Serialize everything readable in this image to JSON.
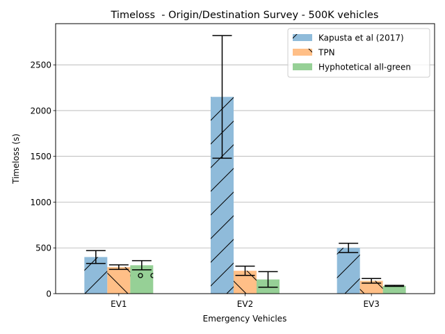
{
  "chart_data": {
    "type": "bar",
    "title": "Timeloss  - Origin/Destination Survey - 500K vehicles",
    "xlabel": "Emergency Vehicles",
    "ylabel": "Timeloss (s)",
    "categories": [
      "EV1",
      "EV2",
      "EV3"
    ],
    "ylim": [
      0,
      2950
    ],
    "yticks": [
      0,
      500,
      1000,
      1500,
      2000,
      2500
    ],
    "grid": "horizontal",
    "legend_position": "top-right",
    "series": [
      {
        "name": "Kapusta et al (2017)",
        "color": "#1f77b4",
        "hatch": "diagonal",
        "values": [
          400,
          2150,
          500
        ],
        "error": [
          70,
          670,
          50
        ]
      },
      {
        "name": "TPN",
        "color": "#ff7f0e",
        "hatch": "backslash",
        "values": [
          290,
          250,
          140
        ],
        "error": [
          25,
          50,
          25
        ]
      },
      {
        "name": "Hyphotetical all-green",
        "color": "#2ca02c",
        "hatch": "circles",
        "values": [
          310,
          155,
          85
        ],
        "error": [
          50,
          85,
          5
        ]
      }
    ]
  }
}
